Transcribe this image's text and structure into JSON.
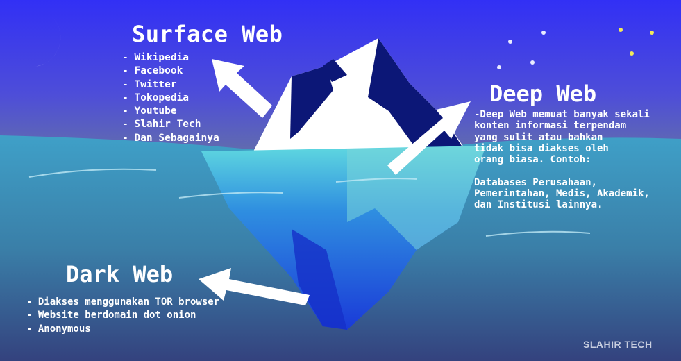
{
  "surface": {
    "title": "Surface Web",
    "items": [
      "- Wikipedia",
      "- Facebook",
      "- Twitter",
      "- Tokopedia",
      "- Youtube",
      "- Slahir Tech",
      "- Dan Sebagainya"
    ]
  },
  "deep": {
    "title": "Deep Web",
    "lines": [
      "-Deep Web memuat banyak sekali",
      "konten informasi terpendam",
      "yang sulit atau bahkan",
      "tidak bisa diakses oleh",
      "orang biasa. Contoh:"
    ],
    "examples": [
      "Databases Perusahaan,",
      "Pemerintahan, Medis, Akademik,",
      "dan Institusi lainnya."
    ]
  },
  "dark": {
    "title": "Dark Web",
    "items": [
      "- Diakses menggunakan TOR browser",
      "- Website berdomain dot onion",
      "- Anonymous"
    ]
  },
  "brand": "SLAHIR TECH",
  "colors": {
    "sky_top": "#3330f5",
    "sky_bottom": "#5a67b0",
    "sea": "#3f97b8",
    "sea_deep": "#2f3f7f",
    "ice": "#ffffff",
    "ice_shadow": "#0c1777",
    "underwater_ice": "#1560e0",
    "star": "#f2e85a"
  },
  "icons": [
    "moon-icon",
    "star-icon",
    "arrow-icon"
  ]
}
